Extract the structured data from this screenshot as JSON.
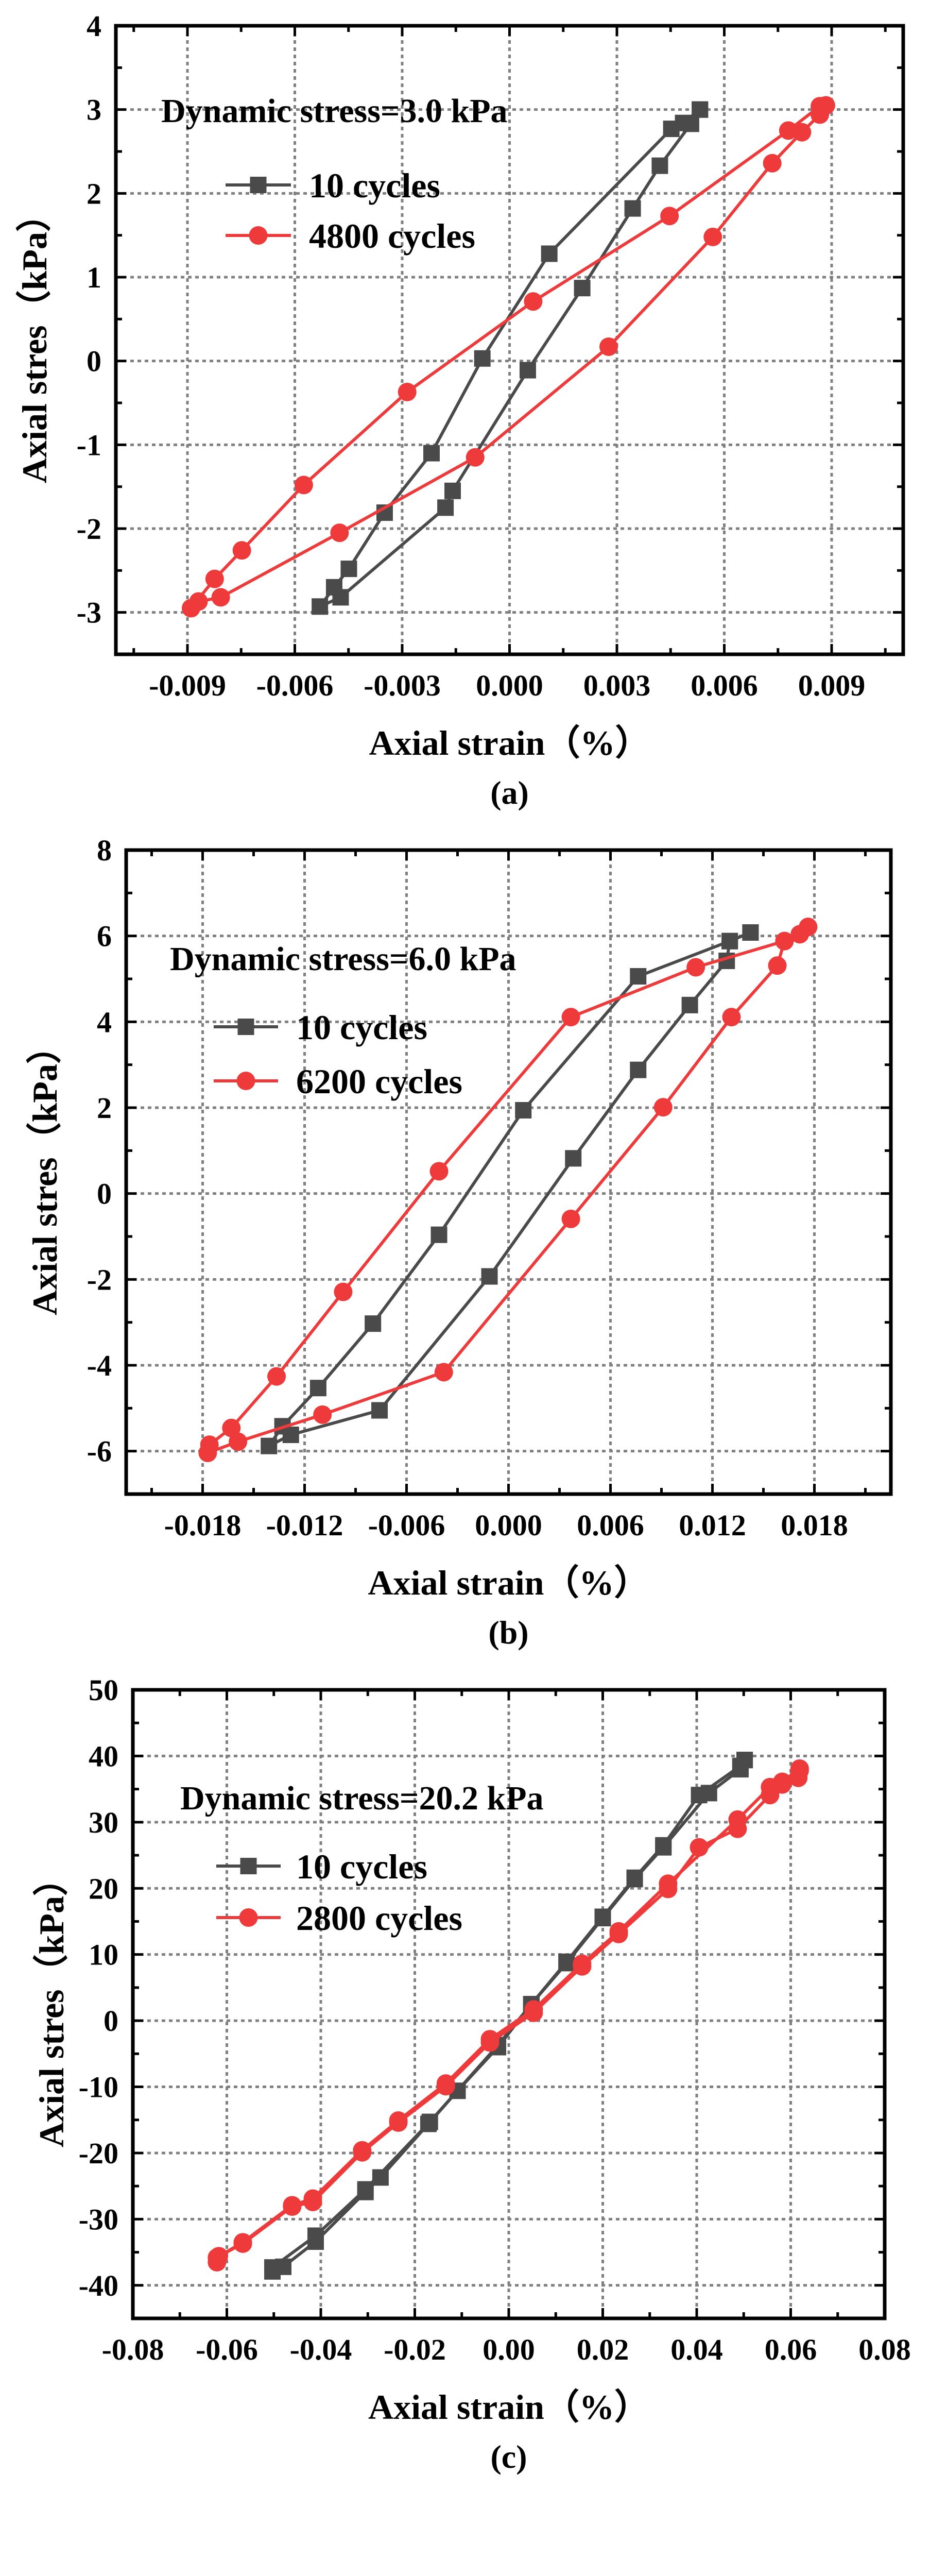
{
  "colors": {
    "series_10": "#4a4a4a",
    "series_long": "#ee3a3a",
    "grid": "#808080"
  },
  "chart_data": [
    {
      "type": "line",
      "panel_label": "(a)",
      "annotation": "Dynamic stress=3.0 kPa",
      "xlabel": "Axial strain（%）",
      "ylabel": "Axial stres（kPa）",
      "xlim": [
        -0.011,
        0.011
      ],
      "ylim": [
        -3.5,
        4
      ],
      "xticks": [
        -0.009,
        -0.006,
        -0.003,
        0.0,
        0.003,
        0.006,
        0.009
      ],
      "xtick_labels": [
        "-0.009",
        "-0.006",
        "-0.003",
        "0.000",
        "0.003",
        "0.006",
        "0.009"
      ],
      "yticks": [
        -3,
        -2,
        -1,
        0,
        1,
        2,
        3,
        4
      ],
      "ytick_labels": [
        "-3",
        "-2",
        "-1",
        "0",
        "1",
        "2",
        "3",
        "4"
      ],
      "grid": true,
      "legend_position": "top-left",
      "series": [
        {
          "name": "10 cycles",
          "marker": "square",
          "x": [
            0.00532,
            0.00507,
            0.0042,
            0.00344,
            0.00203,
            0.00051,
            -0.00159,
            -0.00179,
            -0.00472,
            -0.0053,
            -0.0049,
            -0.00449,
            -0.00349,
            -0.00218,
            -0.00076,
            0.00111,
            0.00452,
            0.00485,
            0.00532
          ],
          "y": [
            3.0,
            2.83,
            2.33,
            1.82,
            0.87,
            -0.11,
            -1.55,
            -1.75,
            -2.82,
            -2.93,
            -2.7,
            -2.48,
            -1.81,
            -1.1,
            0.03,
            1.28,
            2.77,
            2.84,
            3.0
          ]
        },
        {
          "name": "4800 cycles",
          "marker": "circle",
          "x": [
            0.00884,
            0.00867,
            0.00817,
            0.00734,
            0.00568,
            0.00277,
            -0.00096,
            -0.00475,
            -0.00807,
            -0.00869,
            -0.0089,
            -0.00824,
            -0.00748,
            -0.00575,
            -0.00286,
            0.00066,
            0.00447,
            0.00779,
            0.00867
          ],
          "y": [
            3.05,
            2.94,
            2.73,
            2.36,
            1.48,
            0.17,
            -1.15,
            -2.05,
            -2.82,
            -2.87,
            -2.95,
            -2.6,
            -2.26,
            -1.48,
            -0.37,
            0.71,
            1.73,
            2.75,
            3.04
          ]
        }
      ]
    },
    {
      "type": "line",
      "panel_label": "(b)",
      "annotation": "Dynamic stress=6.0 kPa",
      "xlabel": "Axial strain（%）",
      "ylabel": "Axial stres（kPa）",
      "xlim": [
        -0.0225,
        0.0225
      ],
      "ylim": [
        -7,
        8
      ],
      "xticks": [
        -0.018,
        -0.012,
        -0.006,
        0.0,
        0.006,
        0.012,
        0.018
      ],
      "xtick_labels": [
        "-0.018",
        "-0.012",
        "-0.006",
        "0.000",
        "0.006",
        "0.012",
        "0.018"
      ],
      "yticks": [
        -6,
        -4,
        -2,
        0,
        2,
        4,
        6,
        8
      ],
      "ytick_labels": [
        "-6",
        "-4",
        "-2",
        "0",
        "2",
        "4",
        "6",
        "8"
      ],
      "grid": true,
      "legend_position": "top-left",
      "series": [
        {
          "name": "10 cycles",
          "marker": "square",
          "x": [
            0.01424,
            0.01302,
            0.01284,
            0.01067,
            0.00763,
            0.00381,
            -0.00112,
            -0.00759,
            -0.01281,
            -0.0141,
            -0.0133,
            -0.0112,
            -0.00798,
            -0.00409,
            0.00087,
            0.00763,
            0.01302,
            0.01424
          ],
          "y": [
            6.08,
            5.88,
            5.42,
            4.39,
            2.88,
            0.82,
            -1.93,
            -5.05,
            -5.62,
            -5.88,
            -5.42,
            -4.53,
            -3.03,
            -0.96,
            1.94,
            5.06,
            5.88,
            6.08
          ]
        },
        {
          "name": "6200 cycles",
          "marker": "circle",
          "x": [
            0.01763,
            0.01714,
            0.01624,
            0.01582,
            0.01312,
            0.0091,
            0.00367,
            -0.00381,
            -0.01095,
            -0.01592,
            -0.0177,
            -0.0176,
            -0.01631,
            -0.01365,
            -0.00973,
            -0.00409,
            0.00367,
            0.01102,
            0.01624,
            0.01763
          ],
          "y": [
            6.21,
            6.04,
            5.88,
            5.31,
            4.11,
            2.01,
            -0.59,
            -4.16,
            -5.15,
            -5.78,
            -6.04,
            -5.85,
            -5.46,
            -4.26,
            -2.29,
            0.52,
            4.11,
            5.27,
            5.88,
            6.21
          ]
        }
      ]
    },
    {
      "type": "line",
      "panel_label": "(c)",
      "annotation": "Dynamic stress=20.2 kPa",
      "xlabel": "Axial strain（%）",
      "ylabel": "Axial stres（kPa）",
      "xlim": [
        -0.08,
        0.08
      ],
      "ylim": [
        -45,
        50
      ],
      "xticks": [
        -0.08,
        -0.06,
        -0.04,
        -0.02,
        0.0,
        0.02,
        0.04,
        0.06,
        0.08
      ],
      "xtick_labels": [
        "-0.08",
        "-0.06",
        "-0.04",
        "-0.02",
        "0.00",
        "0.02",
        "0.04",
        "0.06",
        "0.08"
      ],
      "yticks": [
        -40,
        -30,
        -20,
        -10,
        0,
        10,
        20,
        30,
        40,
        50
      ],
      "ytick_labels": [
        "-40",
        "-30",
        "-20",
        "-10",
        "0",
        "10",
        "20",
        "30",
        "40",
        "50"
      ],
      "grid": true,
      "legend_position": "top-left",
      "series": [
        {
          "name": "10 cycles",
          "marker": "square",
          "x": [
            0.0502,
            0.0493,
            0.0426,
            0.0329,
            0.0268,
            0.02,
            0.0123,
            0.0048,
            -0.0023,
            -0.0109,
            -0.0171,
            -0.0273,
            -0.0305,
            -0.0411,
            -0.048,
            -0.0503,
            -0.0503,
            -0.0411,
            -0.0305,
            -0.0168,
            -0.0023,
            0.0048,
            0.0123,
            0.02,
            0.0268,
            0.0329,
            0.0405,
            0.0493,
            0.0502
          ],
          "y": [
            39.4,
            38.0,
            34.4,
            26.2,
            21.4,
            15.5,
            8.7,
            2.5,
            -4.0,
            -10.6,
            -15.6,
            -23.7,
            -25.9,
            -33.4,
            -37.2,
            -37.9,
            -37.3,
            -32.5,
            -25.5,
            -15.3,
            -3.7,
            2.5,
            8.9,
            15.7,
            21.6,
            26.5,
            34.1,
            38.5,
            39.4
          ]
        },
        {
          "name": "2800 cycles",
          "marker": "circle",
          "x": [
            0.0619,
            0.0616,
            0.0582,
            0.0556,
            0.0487,
            0.0405,
            0.0339,
            0.0234,
            0.0156,
            0.0053,
            -0.004,
            -0.0134,
            -0.0235,
            -0.0312,
            -0.0417,
            -0.0461,
            -0.0566,
            -0.0617,
            -0.0621,
            -0.0621,
            -0.0566,
            -0.0461,
            -0.0417,
            -0.0312,
            -0.0235,
            -0.0134,
            -0.004,
            0.0053,
            0.0156,
            0.0234,
            0.0339,
            0.0487,
            0.0556,
            0.0582,
            0.0619
          ],
          "y": [
            37.8,
            36.7,
            35.7,
            34.1,
            29.0,
            26.2,
            19.9,
            13.1,
            8.2,
            1.2,
            -3.3,
            -9.9,
            -15.4,
            -19.9,
            -27.4,
            -28.1,
            -33.7,
            -35.6,
            -36.5,
            -35.8,
            -33.5,
            -27.9,
            -26.9,
            -19.6,
            -15.1,
            -9.5,
            -2.8,
            1.7,
            8.6,
            13.5,
            20.7,
            30.4,
            35.3,
            36.1,
            38.1
          ]
        }
      ]
    }
  ]
}
